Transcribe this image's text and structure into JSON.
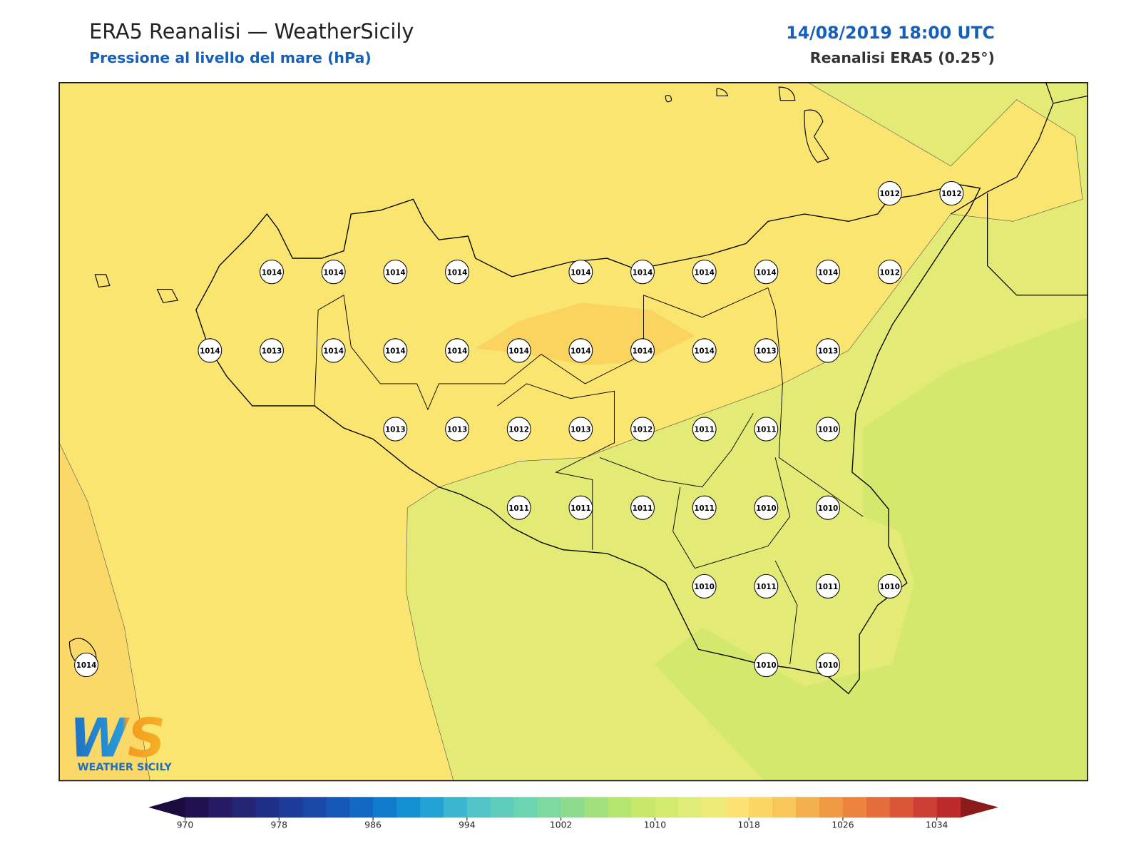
{
  "header": {
    "title": "ERA5 Reanalisi — WeatherSicily",
    "subtitle": "Pressione al livello del mare (hPa)",
    "datetime": "14/08/2019 18:00 UTC",
    "source": "Reanalisi ERA5 (0.25°)"
  },
  "stations": [
    "1012",
    "1012",
    "1014",
    "1014",
    "1014",
    "1014",
    "1014",
    "1014",
    "1014",
    "1014",
    "1014",
    "1012",
    "1014",
    "1013",
    "1014",
    "1014",
    "1014",
    "1014",
    "1014",
    "1014",
    "1014",
    "1013",
    "1013",
    "1013",
    "1013",
    "1012",
    "1013",
    "1012",
    "1011",
    "1011",
    "1010",
    "1011",
    "1011",
    "1011",
    "1011",
    "1010",
    "1010",
    "1010",
    "1011",
    "1011",
    "1010",
    "1014",
    "1010",
    "1010"
  ],
  "colorbar": {
    "lim": [
      970,
      1036
    ],
    "ticks": [
      970,
      978,
      986,
      994,
      1002,
      1010,
      1018,
      1026,
      1034
    ],
    "colors": [
      "#221150",
      "#251a63",
      "#232573",
      "#1f2f87",
      "#1c3b98",
      "#1a48a8",
      "#1656b5",
      "#1467c2",
      "#117ccc",
      "#1390d2",
      "#22a2d4",
      "#3cb6d0",
      "#52c4c8",
      "#5fccbc",
      "#6cd4b0",
      "#7dd9a0",
      "#8edb8e",
      "#a2e07e",
      "#b5e46f",
      "#c7e86a",
      "#d4ea6e",
      "#e0ec78",
      "#eeea78",
      "#fbe272",
      "#fbd664",
      "#f8c659",
      "#f4b04e",
      "#f19a45",
      "#ec8440",
      "#e46d3b",
      "#da5637",
      "#cd3f34",
      "#bd2a2c"
    ]
  },
  "logo": {
    "mark": "WS",
    "name": "WEATHER SICILY"
  }
}
